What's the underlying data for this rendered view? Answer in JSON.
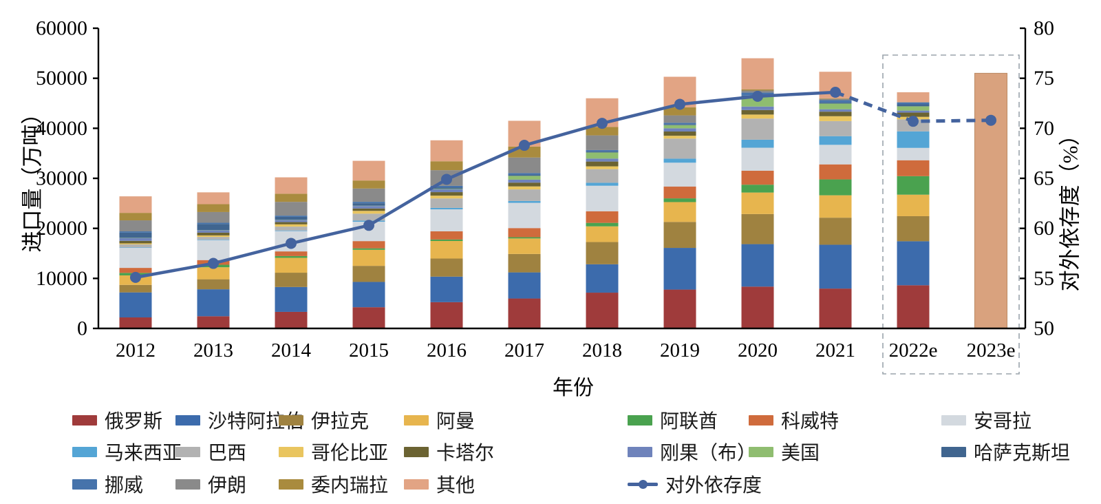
{
  "chart_data": {
    "type": "combo-stacked-bar-line",
    "title": "",
    "xlabel": "年份",
    "ylabel_left": "进口量（万吨）",
    "ylabel_right": "对外依存度（%）",
    "ylim_left": [
      0,
      60000
    ],
    "yticks_left": [
      "0",
      "10000",
      "20000",
      "30000",
      "40000",
      "50000",
      "60000"
    ],
    "ylim_right": [
      50,
      80
    ],
    "yticks_right": [
      "50",
      "55",
      "60",
      "65",
      "70",
      "75",
      "80"
    ],
    "grid": "off",
    "legend_position": "bottom",
    "categories": [
      "2012",
      "2013",
      "2014",
      "2015",
      "2016",
      "2017",
      "2018",
      "2019",
      "2020",
      "2021",
      "2022e",
      "2023e"
    ],
    "bar_totals": [
      26400,
      27200,
      30200,
      33500,
      37600,
      41500,
      46000,
      50300,
      54000,
      51300,
      47200,
      51000
    ],
    "series": [
      {
        "name": "俄罗斯",
        "color": "#9f3b3b",
        "values": [
          2200,
          2435,
          3310,
          4240,
          5250,
          5980,
          7150,
          7765,
          8357,
          7965,
          8625,
          0
        ]
      },
      {
        "name": "沙特阿拉伯",
        "color": "#3c6bac",
        "values": [
          5000,
          5390,
          4970,
          5055,
          5100,
          5220,
          5670,
          8330,
          8492,
          8760,
          8800,
          0
        ]
      },
      {
        "name": "伊拉克",
        "color": "#9f8240",
        "values": [
          1500,
          2000,
          2860,
          3210,
          3620,
          3680,
          4445,
          5190,
          6012,
          5410,
          5010,
          0
        ]
      },
      {
        "name": "阿曼",
        "color": "#e7b54e",
        "values": [
          1900,
          2400,
          2970,
          3205,
          3505,
          3100,
          3135,
          3970,
          4300,
          4475,
          4300,
          0
        ]
      },
      {
        "name": "阿联酋",
        "color": "#4aa24f",
        "values": [
          500,
          500,
          350,
          300,
          300,
          250,
          700,
          740,
          1570,
          3175,
          3700,
          0
        ]
      },
      {
        "name": "科威特",
        "color": "#cf6b3c",
        "values": [
          1000,
          935,
          935,
          1445,
          1635,
          1825,
          2320,
          2350,
          2790,
          3005,
          3180,
          0
        ]
      },
      {
        "name": "安哥拉",
        "color": "#d3d9df",
        "values": [
          4000,
          4000,
          4065,
          3870,
          4390,
          5040,
          5100,
          4780,
          4600,
          3905,
          2470,
          0
        ]
      },
      {
        "name": "马来西亚",
        "color": "#54a5d5",
        "values": [
          100,
          110,
          120,
          230,
          300,
          380,
          600,
          810,
          1600,
          1735,
          3300,
          0
        ]
      },
      {
        "name": "巴西",
        "color": "#b2b2b2",
        "values": [
          600,
          520,
          770,
          1380,
          1880,
          2310,
          2715,
          4010,
          4225,
          3015,
          2400,
          0
        ]
      },
      {
        "name": "哥伦比亚",
        "color": "#e9c55f",
        "values": [
          200,
          300,
          450,
          560,
          560,
          600,
          560,
          565,
          800,
          970,
          500,
          0
        ]
      },
      {
        "name": "卡塔尔",
        "color": "#6b6332",
        "values": [
          500,
          550,
          450,
          480,
          700,
          760,
          960,
          845,
          900,
          910,
          850,
          0
        ]
      },
      {
        "name": "刚果（布）",
        "color": "#6f83bb",
        "values": [
          550,
          480,
          430,
          500,
          560,
          590,
          590,
          640,
          700,
          480,
          400,
          0
        ]
      },
      {
        "name": "美国",
        "color": "#8fbd70",
        "values": [
          50,
          50,
          50,
          50,
          100,
          765,
          1230,
          640,
          1976,
          1140,
          860,
          0
        ]
      },
      {
        "name": "哈萨克斯坦",
        "color": "#40658f",
        "values": [
          1050,
          1200,
          570,
          500,
          300,
          250,
          230,
          195,
          225,
          240,
          400,
          0
        ]
      },
      {
        "name": "挪威",
        "color": "#4673ab",
        "values": [
          250,
          250,
          250,
          280,
          300,
          300,
          250,
          270,
          600,
          430,
          350,
          0
        ]
      },
      {
        "name": "伊朗",
        "color": "#8a8a8a",
        "values": [
          2200,
          2145,
          2745,
          2660,
          3130,
          3115,
          2930,
          1480,
          400,
          260,
          100,
          0
        ]
      },
      {
        "name": "委内瑞拉",
        "color": "#a98b3e",
        "values": [
          1500,
          1570,
          1630,
          1600,
          1780,
          2175,
          1665,
          1630,
          250,
          100,
          0,
          0
        ]
      },
      {
        "name": "其他",
        "color": "#e2a484",
        "values": [
          3300,
          2365,
          3275,
          3935,
          4190,
          5160,
          5750,
          6090,
          6203,
          5325,
          1955,
          51000
        ]
      }
    ],
    "line_series": {
      "name": "对外依存度",
      "color": "#44639e",
      "values": [
        55.1,
        56.5,
        58.5,
        60.3,
        64.9,
        68.3,
        70.5,
        72.4,
        73.2,
        73.6,
        70.7,
        70.8
      ],
      "dashed_from_index": 9
    },
    "forecast_bar": {
      "category": "2023e",
      "color": "#d9a27e",
      "border": "#bb8a64"
    },
    "forecast_box_categories": [
      "2022e",
      "2023e"
    ],
    "forecast_box_color": "#9aa3ab"
  }
}
